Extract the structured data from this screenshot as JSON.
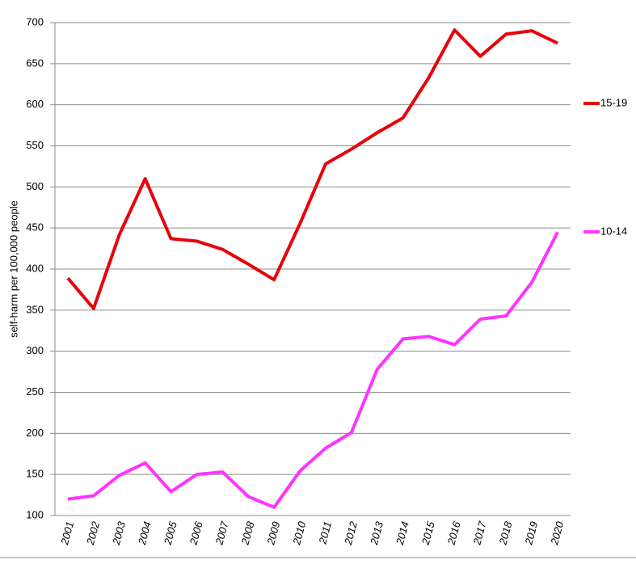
{
  "chart_data": {
    "type": "line",
    "y_label": "self-harm per 100,000 people",
    "categories": [
      "2001",
      "2002",
      "2003",
      "2004",
      "2005",
      "2006",
      "2007",
      "2008",
      "2009",
      "2010",
      "2011",
      "2012",
      "2013",
      "2014",
      "2015",
      "2016",
      "2017",
      "2018",
      "2019",
      "2020"
    ],
    "series": [
      {
        "name": "15-19",
        "color": "#e8000b",
        "values": [
          389,
          352,
          442,
          510,
          437,
          434,
          424,
          406,
          387,
          455,
          528,
          546,
          566,
          584,
          633,
          691,
          659,
          686,
          690,
          675
        ]
      },
      {
        "name": "10-14",
        "color": "#ff33ff",
        "values": [
          120,
          124,
          149,
          164,
          129,
          150,
          153,
          123,
          110,
          154,
          182,
          201,
          278,
          315,
          318,
          308,
          339,
          343,
          384,
          445
        ]
      }
    ],
    "ylim": [
      100,
      700
    ],
    "yticks": [
      100,
      150,
      200,
      250,
      300,
      350,
      400,
      450,
      500,
      550,
      600,
      650,
      700
    ],
    "grid": true
  }
}
